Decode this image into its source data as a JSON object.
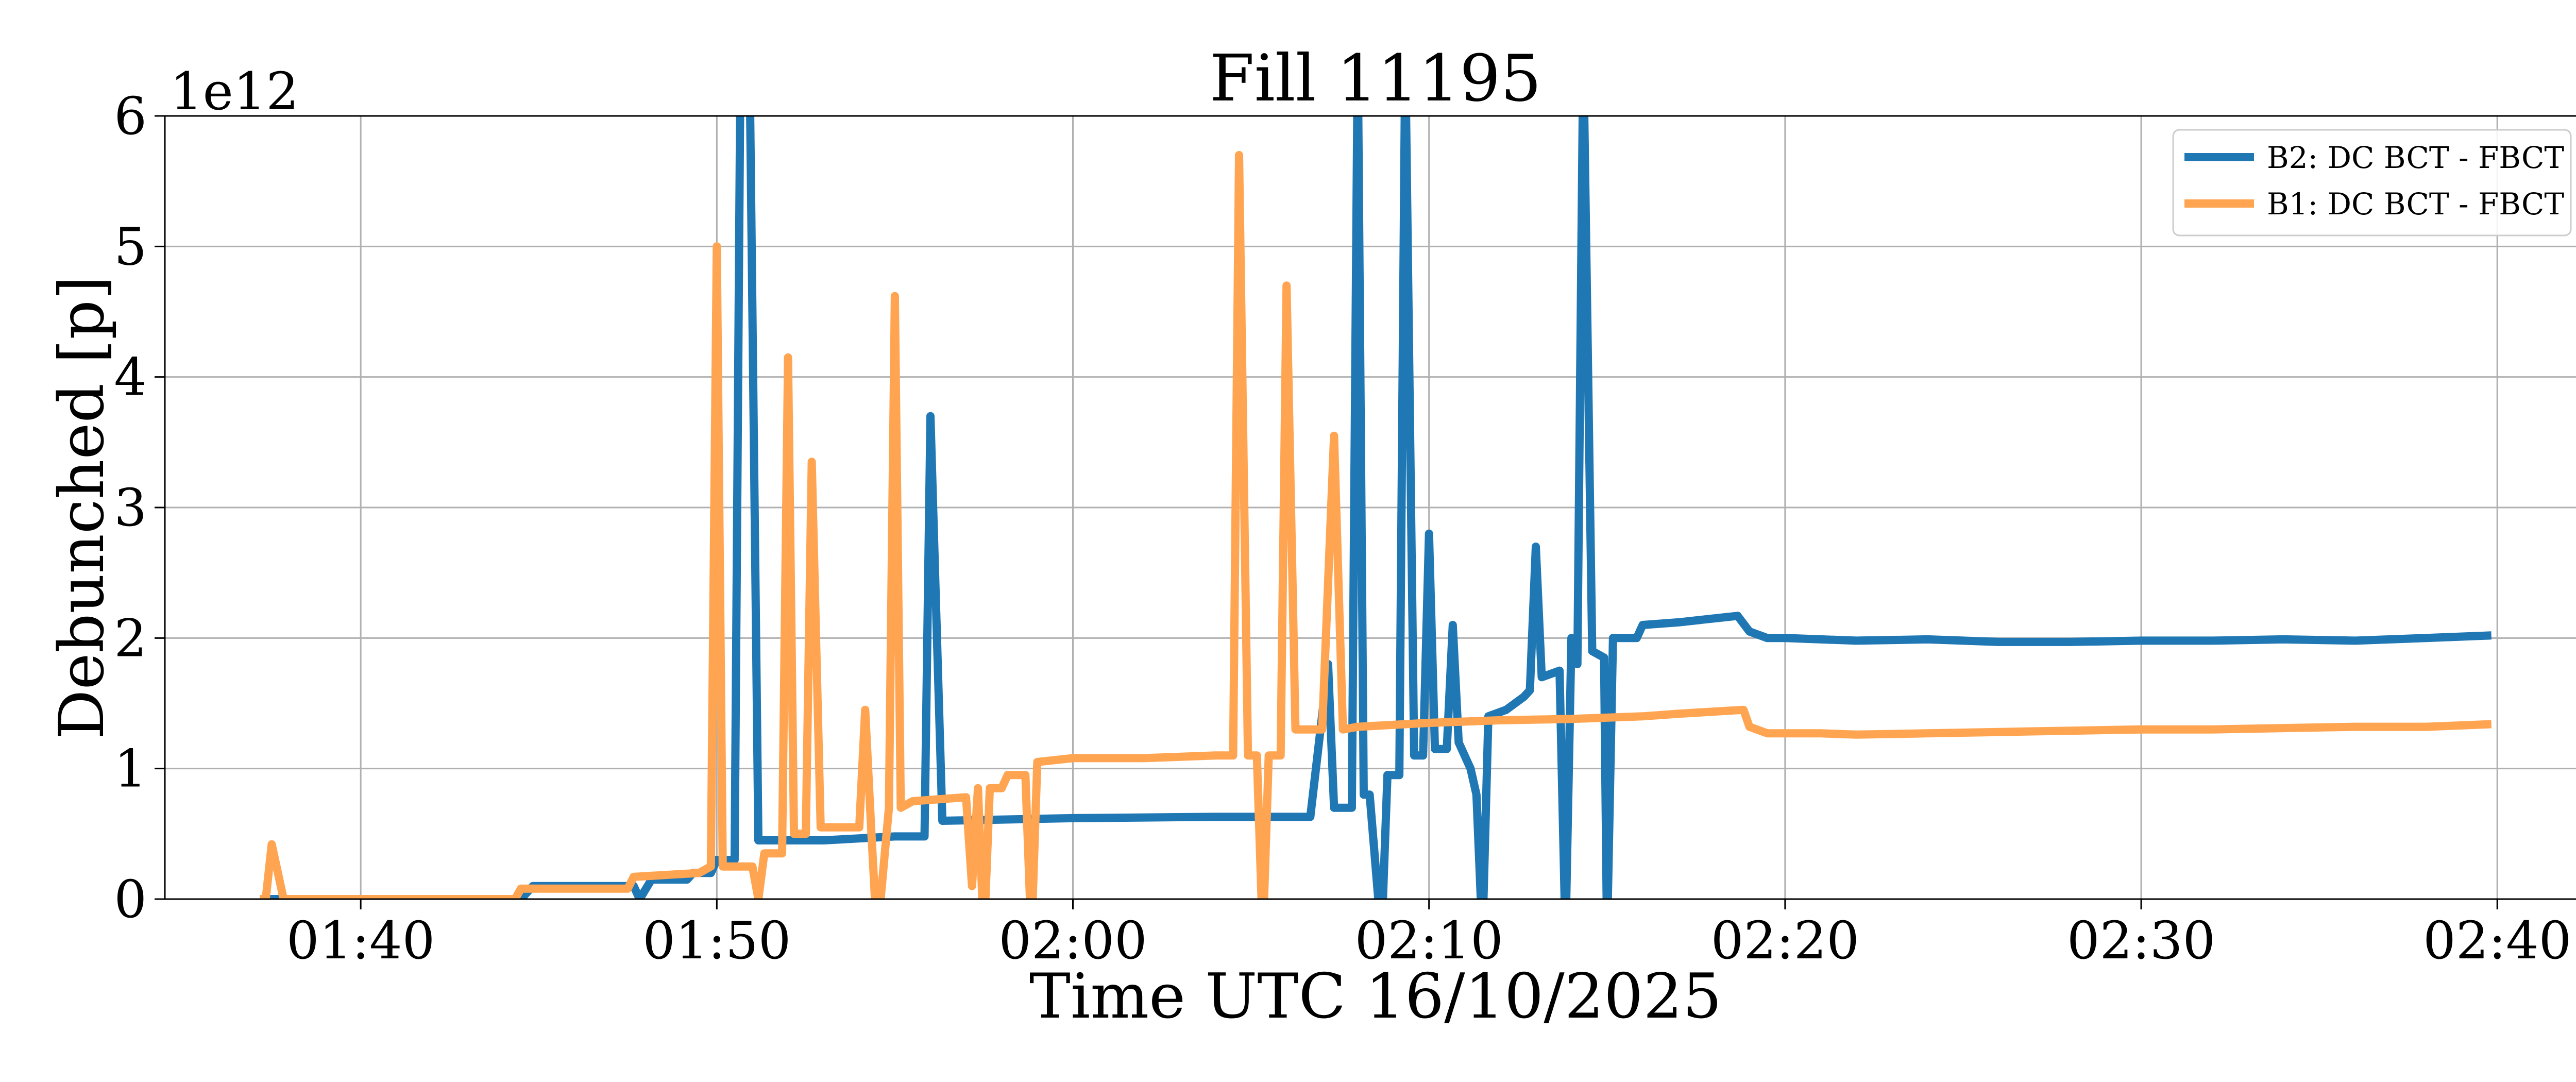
{
  "chart_data": {
    "type": "line",
    "title": "Fill 11195",
    "xlabel": "Time UTC 16/10/2025",
    "ylabel": "Debunched [p]",
    "y_offset_label": "1e12",
    "xlim": [
      "01:34:30",
      "02:42:30"
    ],
    "ylim": [
      0,
      6
    ],
    "x_ticks": [
      "01:40",
      "01:50",
      "02:00",
      "02:10",
      "02:20",
      "02:30",
      "02:40"
    ],
    "y_ticks": [
      "0",
      "1",
      "2",
      "3",
      "4",
      "5",
      "6"
    ],
    "grid": true,
    "legend_position": "top-right",
    "series": [
      {
        "name": "B2: DC BCT - FBCT",
        "color": "#1f77b4",
        "points": [
          [
            "01:37:10",
            0
          ],
          [
            "01:44:30",
            0
          ],
          [
            "01:44:50",
            0.1
          ],
          [
            "01:47:40",
            0.1
          ],
          [
            "01:47:50",
            0
          ],
          [
            "01:48:10",
            0.15
          ],
          [
            "01:49:10",
            0.15
          ],
          [
            "01:49:20",
            0.2
          ],
          [
            "01:49:50",
            0.2
          ],
          [
            "01:50:00",
            0.3
          ],
          [
            "01:50:30",
            0.3
          ],
          [
            "01:50:40",
            6.5
          ],
          [
            "01:50:55",
            6.5
          ],
          [
            "01:51:10",
            0.45
          ],
          [
            "01:53:00",
            0.45
          ],
          [
            "01:55:00",
            0.48
          ],
          [
            "01:55:50",
            0.48
          ],
          [
            "01:56:00",
            3.7
          ],
          [
            "01:56:20",
            0.6
          ],
          [
            "02:00:00",
            0.62
          ],
          [
            "02:04:00",
            0.63
          ],
          [
            "02:06:40",
            0.63
          ],
          [
            "02:07:10",
            1.8
          ],
          [
            "02:07:20",
            0.7
          ],
          [
            "02:07:50",
            0.7
          ],
          [
            "02:08:00",
            6.5
          ],
          [
            "02:08:10",
            0.8
          ],
          [
            "02:08:20",
            0.8
          ],
          [
            "02:08:40",
            -0.3
          ],
          [
            "02:08:50",
            0.95
          ],
          [
            "02:09:10",
            0.95
          ],
          [
            "02:09:20",
            6.5
          ],
          [
            "02:09:35",
            1.1
          ],
          [
            "02:09:50",
            1.1
          ],
          [
            "02:10:00",
            2.8
          ],
          [
            "02:10:10",
            1.15
          ],
          [
            "02:10:30",
            1.15
          ],
          [
            "02:10:40",
            2.1
          ],
          [
            "02:10:50",
            1.2
          ],
          [
            "02:11:10",
            1.0
          ],
          [
            "02:11:20",
            0.8
          ],
          [
            "02:11:30",
            -0.3
          ],
          [
            "02:11:40",
            1.4
          ],
          [
            "02:12:10",
            1.45
          ],
          [
            "02:12:40",
            1.55
          ],
          [
            "02:12:50",
            1.6
          ],
          [
            "02:13:00",
            2.7
          ],
          [
            "02:13:10",
            1.7
          ],
          [
            "02:13:40",
            1.75
          ],
          [
            "02:13:50",
            -0.3
          ],
          [
            "02:14:00",
            2.0
          ],
          [
            "02:14:10",
            1.8
          ],
          [
            "02:14:20",
            6.5
          ],
          [
            "02:14:35",
            1.9
          ],
          [
            "02:14:55",
            1.85
          ],
          [
            "02:15:00",
            -0.3
          ],
          [
            "02:15:10",
            2.0
          ],
          [
            "02:15:50",
            2.0
          ],
          [
            "02:16:00",
            2.1
          ],
          [
            "02:17:00",
            2.12
          ],
          [
            "02:18:00",
            2.15
          ],
          [
            "02:18:40",
            2.17
          ],
          [
            "02:19:00",
            2.05
          ],
          [
            "02:19:30",
            2.0
          ],
          [
            "02:20:00",
            2.0
          ],
          [
            "02:22:00",
            1.98
          ],
          [
            "02:24:00",
            1.99
          ],
          [
            "02:26:00",
            1.97
          ],
          [
            "02:28:00",
            1.97
          ],
          [
            "02:30:00",
            1.98
          ],
          [
            "02:32:00",
            1.98
          ],
          [
            "02:34:00",
            1.99
          ],
          [
            "02:36:00",
            1.98
          ],
          [
            "02:38:00",
            2.0
          ],
          [
            "02:39:50",
            2.02
          ]
        ]
      },
      {
        "name": "B1: DC BCT - FBCT",
        "color": "#ffa552",
        "points": [
          [
            "01:37:10",
            0
          ],
          [
            "01:37:20",
            0
          ],
          [
            "01:37:30",
            0.42
          ],
          [
            "01:37:50",
            0
          ],
          [
            "01:44:20",
            0
          ],
          [
            "01:44:30",
            0.08
          ],
          [
            "01:47:30",
            0.08
          ],
          [
            "01:47:40",
            0.17
          ],
          [
            "01:49:30",
            0.2
          ],
          [
            "01:49:50",
            0.25
          ],
          [
            "01:50:00",
            5.0
          ],
          [
            "01:50:10",
            0.25
          ],
          [
            "01:51:00",
            0.25
          ],
          [
            "01:51:10",
            0
          ],
          [
            "01:51:20",
            0.35
          ],
          [
            "01:51:50",
            0.35
          ],
          [
            "01:52:00",
            4.15
          ],
          [
            "01:52:10",
            0.5
          ],
          [
            "01:52:30",
            0.5
          ],
          [
            "01:52:40",
            3.35
          ],
          [
            "01:52:55",
            0.55
          ],
          [
            "01:54:00",
            0.55
          ],
          [
            "01:54:10",
            1.45
          ],
          [
            "01:54:20",
            0.55
          ],
          [
            "01:54:30",
            -0.3
          ],
          [
            "01:54:50",
            0.7
          ],
          [
            "01:55:00",
            4.62
          ],
          [
            "01:55:10",
            0.7
          ],
          [
            "01:55:30",
            0.75
          ],
          [
            "01:57:00",
            0.78
          ],
          [
            "01:57:10",
            0.1
          ],
          [
            "01:57:20",
            0.85
          ],
          [
            "01:57:30",
            -0.3
          ],
          [
            "01:57:40",
            0.85
          ],
          [
            "01:58:00",
            0.85
          ],
          [
            "01:58:10",
            0.95
          ],
          [
            "01:58:40",
            0.95
          ],
          [
            "01:58:50",
            -0.3
          ],
          [
            "01:59:00",
            1.05
          ],
          [
            "02:00:00",
            1.08
          ],
          [
            "02:02:00",
            1.08
          ],
          [
            "02:04:00",
            1.1
          ],
          [
            "02:04:30",
            1.1
          ],
          [
            "02:04:40",
            5.7
          ],
          [
            "02:04:55",
            1.1
          ],
          [
            "02:05:10",
            1.1
          ],
          [
            "02:05:20",
            -0.3
          ],
          [
            "02:05:30",
            1.1
          ],
          [
            "02:05:50",
            1.1
          ],
          [
            "02:06:00",
            4.7
          ],
          [
            "02:06:15",
            1.3
          ],
          [
            "02:07:00",
            1.3
          ],
          [
            "02:07:20",
            3.55
          ],
          [
            "02:07:35",
            1.3
          ],
          [
            "02:08:00",
            1.32
          ],
          [
            "02:10:00",
            1.35
          ],
          [
            "02:12:00",
            1.37
          ],
          [
            "02:14:00",
            1.38
          ],
          [
            "02:16:00",
            1.4
          ],
          [
            "02:17:00",
            1.42
          ],
          [
            "02:18:50",
            1.45
          ],
          [
            "02:19:00",
            1.32
          ],
          [
            "02:19:30",
            1.27
          ],
          [
            "02:21:00",
            1.27
          ],
          [
            "02:22:00",
            1.26
          ],
          [
            "02:24:00",
            1.27
          ],
          [
            "02:26:00",
            1.28
          ],
          [
            "02:28:00",
            1.29
          ],
          [
            "02:30:00",
            1.3
          ],
          [
            "02:32:00",
            1.3
          ],
          [
            "02:34:00",
            1.31
          ],
          [
            "02:36:00",
            1.32
          ],
          [
            "02:38:00",
            1.32
          ],
          [
            "02:39:50",
            1.34
          ]
        ]
      }
    ]
  }
}
